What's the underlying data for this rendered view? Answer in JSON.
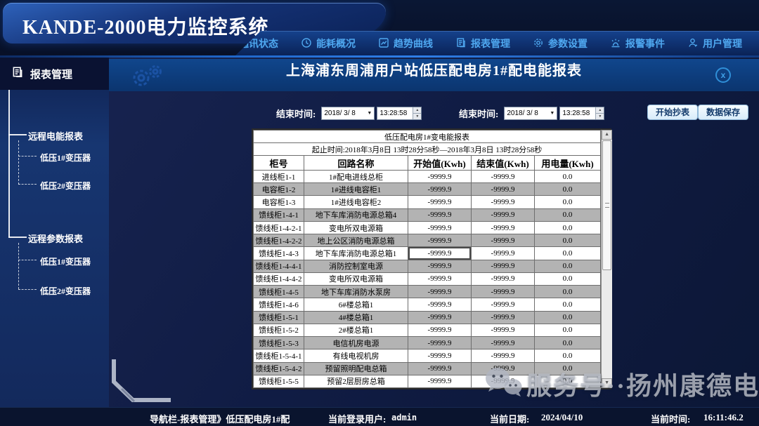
{
  "app": {
    "title": "KANDE-2000电力监控系统"
  },
  "nav": {
    "items": [
      {
        "icon": "signal-icon",
        "label": "通讯状态"
      },
      {
        "icon": "clock-icon",
        "label": "能耗概况"
      },
      {
        "icon": "trend-icon",
        "label": "趋势曲线"
      },
      {
        "icon": "report-icon",
        "label": "报表管理"
      },
      {
        "icon": "gear-icon",
        "label": "参数设置"
      },
      {
        "icon": "alarm-icon",
        "label": "报警事件"
      },
      {
        "icon": "user-icon",
        "label": "用户管理"
      }
    ]
  },
  "sidebar": {
    "header": {
      "icon": "report-icon",
      "label": "报表管理"
    },
    "groups": [
      {
        "label": "远程电能报表",
        "children": [
          "低压1#变压器",
          "低压2#变压器"
        ]
      },
      {
        "label": "远程参数报表",
        "children": [
          "低压1#变压器",
          "低压2#变压器"
        ]
      }
    ]
  },
  "main": {
    "title": "上海浦东周浦用户站低压配电房1#配电能报表",
    "close_label": "x",
    "filters": [
      {
        "label": "结束时间:",
        "date": "2018/ 3/ 8",
        "time": "13:28:58"
      },
      {
        "label": "结束时间:",
        "date": "2018/ 3/ 8",
        "time": "13:28:58"
      }
    ],
    "buttons": [
      {
        "label": "开始抄表"
      },
      {
        "label": "数据保存"
      }
    ]
  },
  "report": {
    "title": "低压配电房1#变电能报表",
    "subtitle": "起止时间:2018年3月8日  13时28分58秒—2018年3月8日  13时28分58秒",
    "columns": [
      "柜号",
      "回路名称",
      "开始值(Kwh)",
      "结束值(Kwh)",
      "用电量(Kwh)"
    ],
    "rows": [
      {
        "cabinet": "进线柜1-1",
        "circuit": "1#配电进线总柜",
        "start": "-9999.9",
        "end": "-9999.9",
        "usage": "0.0"
      },
      {
        "cabinet": "电容柜1-2",
        "circuit": "1#进线电容柜1",
        "start": "-9999.9",
        "end": "-9999.9",
        "usage": "0.0"
      },
      {
        "cabinet": "电容柜1-3",
        "circuit": "1#进线电容柜2",
        "start": "-9999.9",
        "end": "-9999.9",
        "usage": "0.0"
      },
      {
        "cabinet": "馈线柜1-4-1",
        "circuit": "地下车库消防电源总箱4",
        "start": "-9999.9",
        "end": "-9999.9",
        "usage": "0.0"
      },
      {
        "cabinet": "馈线柜1-4-2-1",
        "circuit": "变电所双电源箱",
        "start": "-9999.9",
        "end": "-9999.9",
        "usage": "0.0"
      },
      {
        "cabinet": "馈线柜1-4-2-2",
        "circuit": "地上公区消防电源总箱",
        "start": "-9999.9",
        "end": "-9999.9",
        "usage": "0.0"
      },
      {
        "cabinet": "馈线柜1-4-3",
        "circuit": "地下车库消防电源总箱1",
        "start": "-9999.9",
        "end": "-9999.9",
        "usage": "0.0",
        "selected": true
      },
      {
        "cabinet": "馈线柜1-4-4-1",
        "circuit": "消防控制室电源",
        "start": "-9999.9",
        "end": "-9999.9",
        "usage": "0.0"
      },
      {
        "cabinet": "馈线柜1-4-4-2",
        "circuit": "变电所双电源箱",
        "start": "-9999.9",
        "end": "-9999.9",
        "usage": "0.0"
      },
      {
        "cabinet": "馈线柜1-4-5",
        "circuit": "地下车库消防水泵房",
        "start": "-9999.9",
        "end": "-9999.9",
        "usage": "0.0"
      },
      {
        "cabinet": "馈线柜1-4-6",
        "circuit": "6#楼总箱1",
        "start": "-9999.9",
        "end": "-9999.9",
        "usage": "0.0"
      },
      {
        "cabinet": "馈线柜1-5-1",
        "circuit": "4#楼总箱1",
        "start": "-9999.9",
        "end": "-9999.9",
        "usage": "0.0"
      },
      {
        "cabinet": "馈线柜1-5-2",
        "circuit": "2#楼总箱1",
        "start": "-9999.9",
        "end": "-9999.9",
        "usage": "0.0"
      },
      {
        "cabinet": "馈线柜1-5-3",
        "circuit": "电信机房电源",
        "start": "-9999.9",
        "end": "-9999.9",
        "usage": "0.0"
      },
      {
        "cabinet": "馈线柜1-5-4-1",
        "circuit": "有线电视机房",
        "start": "-9999.9",
        "end": "-9999.9",
        "usage": "0.0"
      },
      {
        "cabinet": "馈线柜1-5-4-2",
        "circuit": "预留照明配电总箱",
        "start": "-9999.9",
        "end": "-9999.9",
        "usage": "0.0"
      },
      {
        "cabinet": "馈线柜1-5-5",
        "circuit": "预留2层厨房总箱",
        "start": "-9999.9",
        "end": "-9999.9",
        "usage": "0.0"
      }
    ]
  },
  "statusbar": {
    "nav_path": "导航栏-报表管理》低压配电房1#配",
    "user_label": "当前登录用户:",
    "user": "admin",
    "date_label": "当前日期:",
    "date": "2024/04/10",
    "time_label": "当前时间:",
    "time": "16:11:46.2"
  },
  "watermark": {
    "icon": "wechat-icon",
    "text": "服务号··扬州康德电气"
  },
  "colors": {
    "accent": "#2f7fe8",
    "titlebar_blue": "#0d3d7f",
    "nav_text": "#4fa8f0",
    "row_alt": "#b3b3b3"
  }
}
